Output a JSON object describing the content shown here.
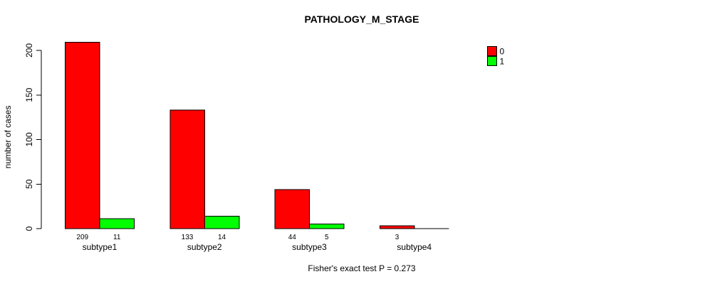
{
  "chart_data": {
    "type": "bar",
    "title": "PATHOLOGY_M_STAGE",
    "xlabel": "",
    "ylabel": "number of cases",
    "categories": [
      "subtype1",
      "subtype2",
      "subtype3",
      "subtype4"
    ],
    "series": [
      {
        "name": "0",
        "color": "#FF0000",
        "values": [
          209,
          133,
          44,
          3
        ]
      },
      {
        "name": "1",
        "color": "#00FF00",
        "values": [
          11,
          14,
          5,
          0
        ]
      }
    ],
    "bar_value_labels": {
      "shown": true,
      "note": "value printed under each bar; zero-height bars have no label"
    },
    "yticks": [
      "0",
      "50",
      "100",
      "150",
      "200"
    ],
    "ytick_values": [
      0,
      50,
      100,
      150,
      200
    ],
    "ylim": [
      0,
      200
    ],
    "grid": false,
    "legend": {
      "position": "top-right",
      "entries": [
        {
          "label": "0",
          "color": "#FF0000"
        },
        {
          "label": "1",
          "color": "#00FF00"
        }
      ]
    },
    "annotation": "Fisher's exact test P = 0.273",
    "axis_color": "#000000",
    "bar_border_color": "#000000",
    "background": "#FFFFFF"
  }
}
